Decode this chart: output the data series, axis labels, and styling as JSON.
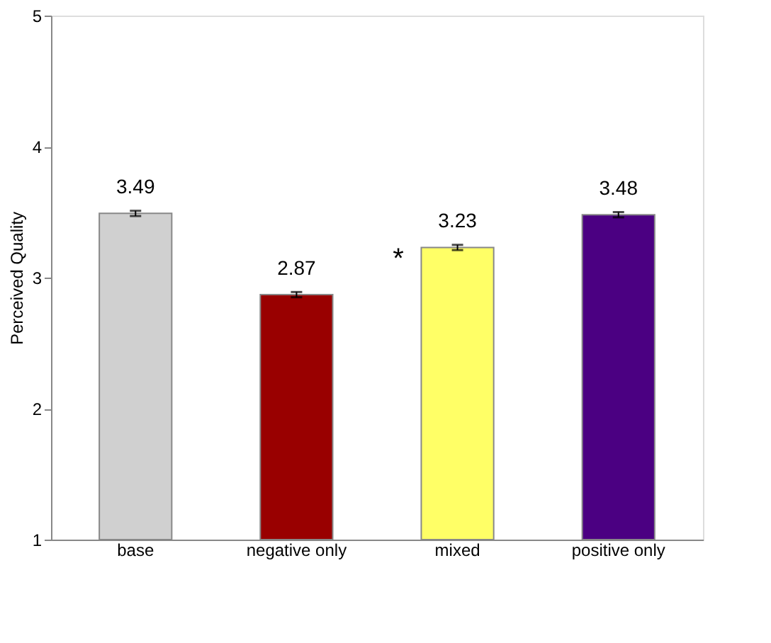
{
  "chart_data": {
    "type": "bar",
    "categories": [
      "base",
      "negative only",
      "mixed",
      "positive only"
    ],
    "values": [
      3.49,
      2.87,
      3.23,
      3.48
    ],
    "colors": [
      "#d0d0d0",
      "#990000",
      "#ffff66",
      "#4b0082"
    ],
    "errors": [
      0.02,
      0.02,
      0.02,
      0.02
    ],
    "ylabel": "Perceived Quality",
    "ylim": [
      1,
      5
    ],
    "yticks": [
      1,
      2,
      3,
      4,
      5
    ],
    "data_labels": true,
    "grid": false,
    "annotations": [
      "*"
    ]
  }
}
